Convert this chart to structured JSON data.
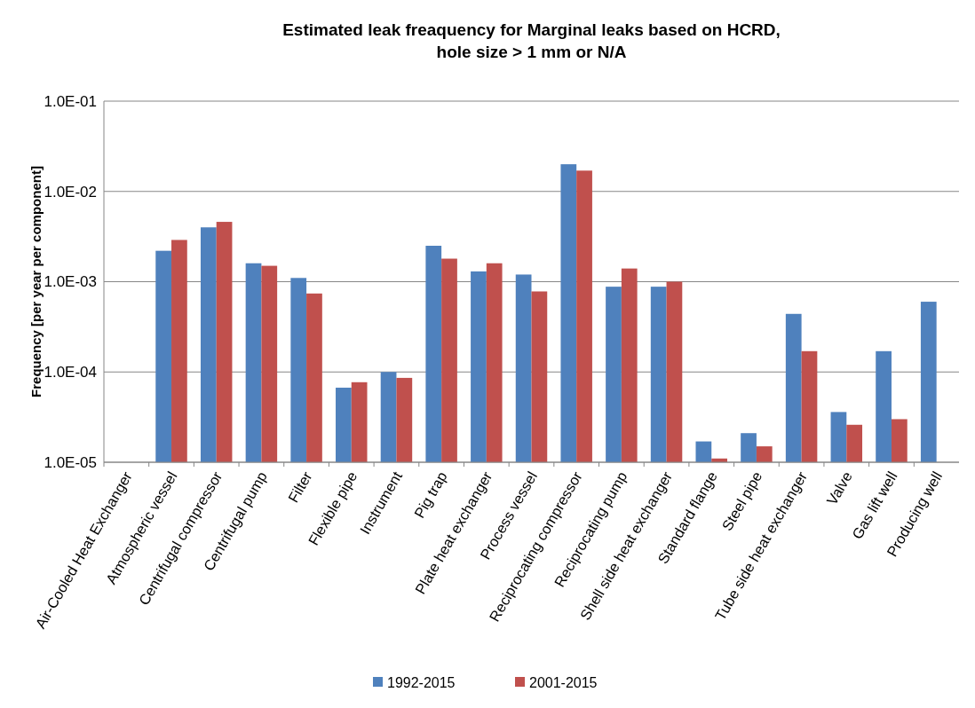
{
  "chart_data": {
    "type": "bar",
    "title": "Estimated leak freaquency for Marginal leaks based on HCRD,\nhole size > 1 mm or N/A",
    "ylabel": "Frequency [per year per component]",
    "categories": [
      "Air-Cooled Heat Exchanger",
      "Atmospheric vessel",
      "Centrifugal compressor",
      "Centrifugal pump",
      "Filter",
      "Flexible pipe",
      "Instrument",
      "Pig trap",
      "Plate heat exchanger",
      "Process vessel",
      "Reciprocating compressor",
      "Reciprocating pump",
      "Shell side heat exchanger",
      "Standard flange",
      "Steel pipe",
      "Tube side heat exchanger",
      "Valve",
      "Gas lift well",
      "Producing well"
    ],
    "series": [
      {
        "name": "1992-2015",
        "color": "#4f81bd",
        "values": [
          null,
          0.0022,
          0.004,
          0.0016,
          0.0011,
          6.7e-05,
          0.0001,
          0.0025,
          0.0013,
          0.0012,
          0.02,
          0.00088,
          0.00088,
          1.7e-05,
          2.1e-05,
          0.00044,
          3.6e-05,
          0.00017,
          0.0006
        ]
      },
      {
        "name": "2001-2015",
        "color": "#c0504d",
        "values": [
          null,
          0.0029,
          0.0046,
          0.0015,
          0.00074,
          7.7e-05,
          8.6e-05,
          0.0018,
          0.0016,
          0.00078,
          0.017,
          0.0014,
          0.001,
          1.1e-05,
          1.5e-05,
          0.00017,
          2.6e-05,
          3e-05,
          null
        ]
      }
    ],
    "log": true,
    "ylim": [
      1e-05,
      0.1
    ],
    "yticks": [
      {
        "value": 1e-05,
        "label": "1.0E-05"
      },
      {
        "value": 0.0001,
        "label": "1.0E-04"
      },
      {
        "value": 0.001,
        "label": "1.0E-03"
      },
      {
        "value": 0.01,
        "label": "1.0E-02"
      },
      {
        "value": 0.1,
        "label": "1.0E-01"
      }
    ],
    "grid": "y",
    "legend": "bottom"
  }
}
